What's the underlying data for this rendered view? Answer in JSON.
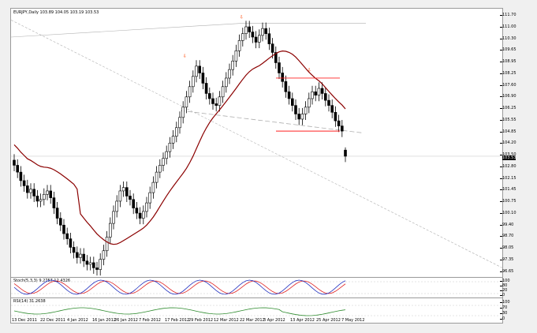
{
  "chart_header": "EURJPY,Daily  103.89 104.05 103.19 103.53",
  "stoch_label": "Stoch(5,3,3) 9.2757 12.4326",
  "rsi_label": "RSI(14) 31.2638",
  "current_price": "103.53",
  "y_ticks": [
    "111.70",
    "111.00",
    "110.30",
    "109.65",
    "108.95",
    "108.25",
    "107.60",
    "106.90",
    "106.25",
    "105.55",
    "104.85",
    "104.20",
    "103.50",
    "102.80",
    "102.15",
    "101.45",
    "100.75",
    "100.10",
    "99.40",
    "98.70",
    "98.05",
    "97.35",
    "96.65"
  ],
  "stoch_ticks": [
    "100",
    "80",
    "20",
    "0"
  ],
  "rsi_ticks": [
    "100",
    "70",
    "30",
    "0"
  ],
  "x_ticks": [
    "13 Dec 2011",
    "22 Dec 2011",
    "4 Jan 2012",
    "16 Jan 2012",
    "26 Jan 2012",
    "7 Feb 2012",
    "17 Feb 2012",
    "29 Feb 2012",
    "12 Mar 2012",
    "22 Mar 2012",
    "3 Apr 2012",
    "13 Apr 2012",
    "25 Apr 2012",
    "7 May 2012"
  ],
  "colors": {
    "ma": "#8b0000",
    "fractal": "#ff4400",
    "stoch_main": "#2030c0",
    "stoch_signal": "#e02020",
    "rsi": "#2e8b2e",
    "levels": "#ff2020",
    "trend": "#b0b0b0"
  },
  "chart_data": {
    "type": "candlestick",
    "symbol": "EURJPY",
    "timeframe": "Daily",
    "last_bar": {
      "open": 103.89,
      "high": 104.05,
      "low": 103.19,
      "close": 103.53
    },
    "ylim": [
      96.65,
      111.7
    ],
    "closes": [
      103.0,
      102.6,
      102.1,
      101.8,
      101.4,
      101.6,
      101.2,
      100.9,
      101.0,
      101.3,
      101.5,
      101.1,
      100.5,
      99.9,
      99.5,
      99.0,
      98.7,
      98.2,
      97.9,
      97.6,
      97.8,
      97.4,
      97.2,
      97.3,
      97.0,
      96.9,
      97.5,
      98.0,
      98.8,
      99.6,
      100.3,
      100.9,
      101.5,
      101.7,
      101.2,
      101.0,
      100.5,
      100.2,
      99.9,
      100.3,
      100.8,
      101.4,
      102.0,
      102.6,
      103.0,
      103.4,
      103.8,
      104.3,
      104.7,
      105.2,
      105.8,
      106.4,
      107.0,
      107.6,
      108.2,
      108.8,
      108.4,
      107.8,
      107.2,
      106.9,
      106.6,
      106.5,
      107.0,
      107.6,
      108.1,
      108.6,
      109.1,
      109.7,
      110.3,
      110.7,
      111.1,
      110.8,
      110.5,
      110.2,
      110.6,
      111.0,
      110.7,
      110.1,
      109.6,
      109.0,
      108.4,
      107.9,
      107.3,
      106.9,
      106.5,
      106.0,
      105.7,
      106.0,
      106.4,
      106.9,
      107.3,
      107.1,
      107.5,
      107.2,
      106.8,
      106.5,
      106.1,
      105.6,
      105.3,
      105.0,
      103.53
    ],
    "stoch_main": 9.2757,
    "stoch_signal": 12.4326,
    "rsi": 31.2638
  }
}
